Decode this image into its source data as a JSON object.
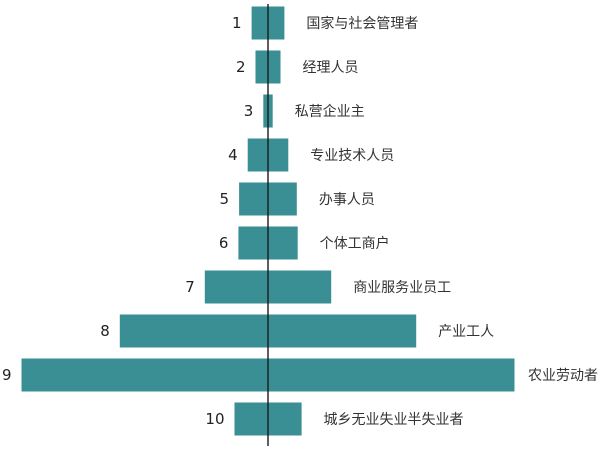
{
  "chart_data": {
    "type": "bar",
    "orientation": "horizontal",
    "layout": "pyramid-centered",
    "bar_color": "#3a8f94",
    "axis_color": "#1a1a1a",
    "ranks": [
      "1",
      "2",
      "3",
      "4",
      "5",
      "6",
      "7",
      "8",
      "9",
      "10"
    ],
    "categories": [
      "国家与社会管理者",
      "经理人员",
      "私营企业主",
      "专业技术人员",
      "办事人员",
      "个体工商户",
      "商业服务业员工",
      "产业工人",
      "农业劳动者",
      "城乡无业失业半失业者"
    ],
    "values": [
      2.1,
      1.6,
      0.6,
      2.6,
      3.7,
      3.8,
      8.1,
      19.0,
      31.6,
      4.3
    ],
    "title": "",
    "xlabel": "",
    "ylabel": "",
    "legend": "none",
    "grid": false
  }
}
